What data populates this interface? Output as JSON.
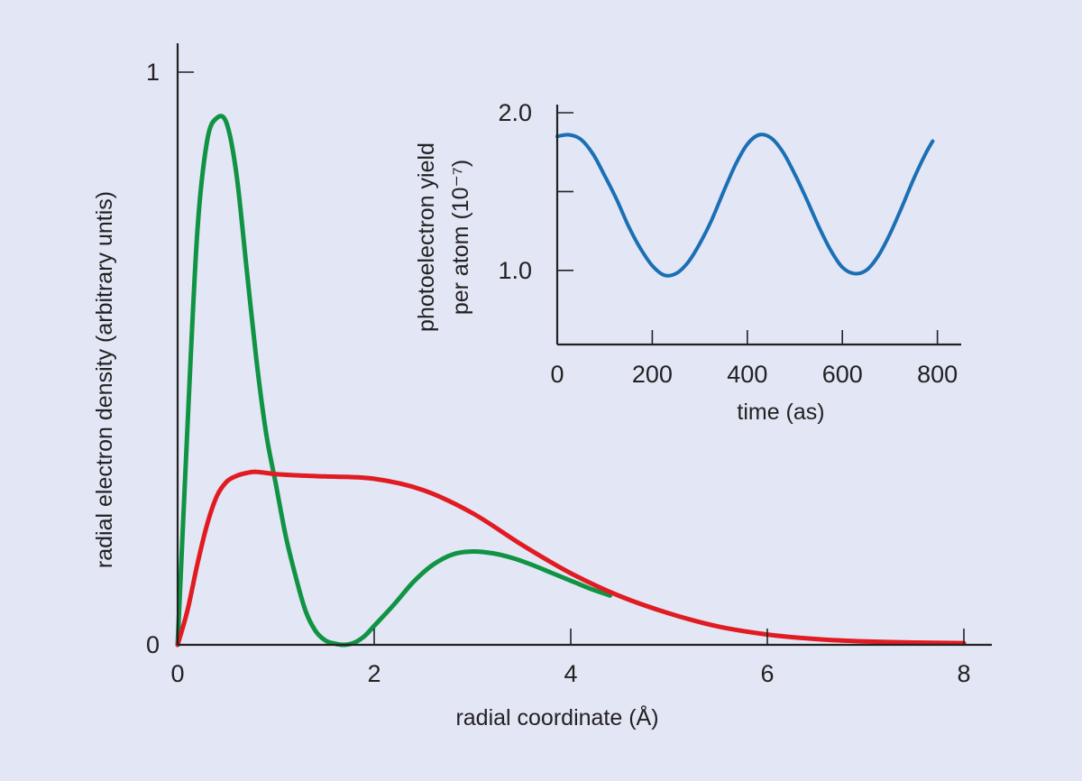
{
  "chart_data": [
    {
      "type": "line",
      "xlabel": "radial coordinate  (Å)",
      "ylabel": "radial electron density (arbitrary untis)",
      "xlim": [
        0,
        8
      ],
      "ylim": [
        0,
        1
      ],
      "x_ticks": [
        0,
        2,
        4,
        6,
        8
      ],
      "x_tick_labels": [
        "0",
        "2",
        "4",
        "6",
        "8"
      ],
      "y_ticks": [
        0,
        1
      ],
      "y_tick_labels": [
        "0",
        "1"
      ],
      "grid": false,
      "legend": "none",
      "series": [
        {
          "color": "#109444",
          "x": [
            0,
            0.1,
            0.2,
            0.3,
            0.4,
            0.5,
            0.6,
            0.7,
            0.8,
            0.9,
            1.0,
            1.1,
            1.2,
            1.3,
            1.4,
            1.5,
            1.6,
            1.7,
            1.8,
            1.9,
            2.0,
            2.2,
            2.4,
            2.6,
            2.8,
            3.0,
            3.2,
            3.4,
            3.6,
            3.8,
            4.0,
            4.2,
            4.4
          ],
          "y": [
            0,
            0.38,
            0.72,
            0.88,
            0.92,
            0.91,
            0.82,
            0.66,
            0.5,
            0.37,
            0.28,
            0.19,
            0.12,
            0.06,
            0.025,
            0.008,
            0.002,
            0.0,
            0.004,
            0.015,
            0.033,
            0.07,
            0.11,
            0.14,
            0.158,
            0.163,
            0.16,
            0.152,
            0.14,
            0.126,
            0.112,
            0.098,
            0.086
          ]
        },
        {
          "color": "#e11b22",
          "x": [
            0,
            0.1,
            0.2,
            0.3,
            0.4,
            0.5,
            0.6,
            0.7,
            0.8,
            1.0,
            1.2,
            1.5,
            2.0,
            2.5,
            3.0,
            3.5,
            4.0,
            4.5,
            5.0,
            5.5,
            6.0,
            6.5,
            7.0,
            7.5,
            8.0
          ],
          "y": [
            0,
            0.06,
            0.14,
            0.21,
            0.26,
            0.285,
            0.295,
            0.3,
            0.302,
            0.298,
            0.296,
            0.294,
            0.29,
            0.27,
            0.23,
            0.175,
            0.125,
            0.085,
            0.055,
            0.032,
            0.018,
            0.01,
            0.006,
            0.004,
            0.003
          ]
        }
      ]
    },
    {
      "type": "line",
      "xlabel": "time (as)",
      "ylabel": [
        "photoelectron yield",
        "per atom  (10⁻⁷)"
      ],
      "xlim": [
        0,
        850
      ],
      "ylim": [
        0.53,
        2.0
      ],
      "x_ticks": [
        0,
        200,
        400,
        600,
        800
      ],
      "x_tick_labels": [
        "0",
        "200",
        "400",
        "600",
        "800"
      ],
      "y_ticks": [
        1.0,
        1.5,
        2.0
      ],
      "y_tick_labels": [
        "1.0",
        "",
        "2.0"
      ],
      "grid": false,
      "legend": "none",
      "series": [
        {
          "color": "#1a6fb5",
          "x": [
            0,
            25,
            50,
            75,
            100,
            125,
            150,
            175,
            200,
            225,
            250,
            275,
            300,
            325,
            350,
            375,
            400,
            425,
            450,
            475,
            500,
            525,
            550,
            575,
            600,
            625,
            650,
            675,
            700,
            725,
            750,
            775,
            790
          ],
          "y": [
            1.85,
            1.86,
            1.83,
            1.74,
            1.6,
            1.45,
            1.28,
            1.14,
            1.03,
            0.97,
            0.98,
            1.05,
            1.17,
            1.32,
            1.5,
            1.67,
            1.8,
            1.86,
            1.84,
            1.75,
            1.61,
            1.45,
            1.28,
            1.13,
            1.02,
            0.98,
            1.0,
            1.09,
            1.23,
            1.4,
            1.58,
            1.74,
            1.82
          ]
        }
      ]
    }
  ]
}
